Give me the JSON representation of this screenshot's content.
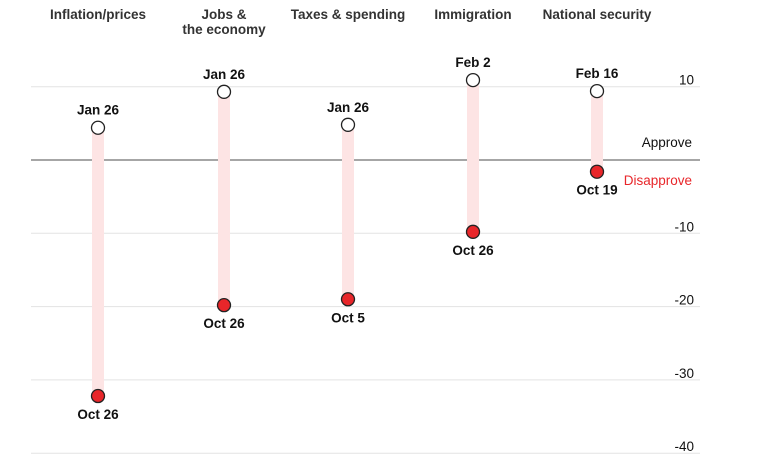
{
  "chart_data": {
    "type": "dumbbell",
    "ylim": [
      -40,
      10
    ],
    "yticks": [
      10,
      -10,
      -20,
      -30,
      -40
    ],
    "zero_labels": {
      "above": "Approve",
      "below": "Disapprove"
    },
    "colors": {
      "approve_marker": "#ffffff",
      "disapprove_marker": "#e8262a",
      "bar": "#fde4e4",
      "disapprove_text": "#e8262a"
    },
    "categories": [
      {
        "name": [
          "Inflation/prices"
        ],
        "start": {
          "label": "Jan 26",
          "value": 4.4
        },
        "end": {
          "label": "Oct 26",
          "value": -32.2
        }
      },
      {
        "name": [
          "Jobs &",
          "the economy"
        ],
        "start": {
          "label": "Jan 26",
          "value": 9.3
        },
        "end": {
          "label": "Oct 26",
          "value": -19.8
        }
      },
      {
        "name": [
          "Taxes & spending"
        ],
        "start": {
          "label": "Jan 26",
          "value": 4.8
        },
        "end": {
          "label": "Oct 5",
          "value": -19.0
        }
      },
      {
        "name": [
          "Immigration"
        ],
        "start": {
          "label": "Feb 2",
          "value": 10.9
        },
        "end": {
          "label": "Oct 26",
          "value": -9.8
        }
      },
      {
        "name": [
          "National security"
        ],
        "start": {
          "label": "Feb 16",
          "value": 9.4
        },
        "end": {
          "label": "Oct 19",
          "value": -1.6
        }
      }
    ]
  }
}
